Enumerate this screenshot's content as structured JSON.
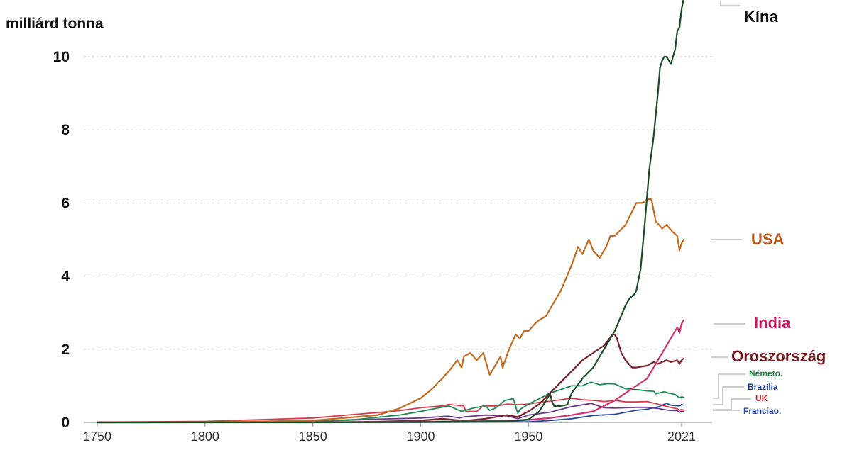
{
  "chart_data": {
    "type": "line",
    "ylabel": "milliárd tonna",
    "xlim": [
      1745,
      2023
    ],
    "ylim": [
      0,
      11
    ],
    "y_ticks": [
      "0",
      "2",
      "4",
      "6",
      "8",
      "10"
    ],
    "x_ticks": [
      "1750",
      "1800",
      "1850",
      "1900",
      "1950",
      "2021"
    ],
    "grid": true,
    "legend": "direct labels at right end of lines",
    "series": [
      {
        "name": "Kína",
        "color": "#1a4d26",
        "label_color": "#111111",
        "label_size": "large",
        "points": [
          [
            1750,
            0
          ],
          [
            1850,
            0
          ],
          [
            1900,
            0.01
          ],
          [
            1920,
            0.02
          ],
          [
            1940,
            0.03
          ],
          [
            1950,
            0.08
          ],
          [
            1955,
            0.3
          ],
          [
            1960,
            0.78
          ],
          [
            1961,
            0.55
          ],
          [
            1962,
            0.44
          ],
          [
            1965,
            0.45
          ],
          [
            1968,
            0.48
          ],
          [
            1970,
            0.8
          ],
          [
            1975,
            1.2
          ],
          [
            1980,
            1.5
          ],
          [
            1985,
            2.0
          ],
          [
            1990,
            2.5
          ],
          [
            1995,
            3.2
          ],
          [
            1997,
            3.4
          ],
          [
            1999,
            3.5
          ],
          [
            2000,
            3.6
          ],
          [
            2002,
            4.2
          ],
          [
            2004,
            5.5
          ],
          [
            2006,
            6.9
          ],
          [
            2008,
            7.8
          ],
          [
            2010,
            9.0
          ],
          [
            2011,
            9.7
          ],
          [
            2012,
            9.9
          ],
          [
            2013,
            10.0
          ],
          [
            2014,
            10.0
          ],
          [
            2015,
            9.9
          ],
          [
            2016,
            9.8
          ],
          [
            2017,
            10.0
          ],
          [
            2018,
            10.2
          ],
          [
            2019,
            10.7
          ],
          [
            2020,
            10.8
          ],
          [
            2021,
            11.3
          ],
          [
            2022,
            11.6
          ]
        ]
      },
      {
        "name": "USA",
        "color": "#c56a1e",
        "label_color": "#c0561a",
        "label_size": "large",
        "points": [
          [
            1750,
            0
          ],
          [
            1800,
            0.002
          ],
          [
            1850,
            0.05
          ],
          [
            1870,
            0.15
          ],
          [
            1880,
            0.2
          ],
          [
            1890,
            0.38
          ],
          [
            1900,
            0.66
          ],
          [
            1905,
            0.9
          ],
          [
            1910,
            1.2
          ],
          [
            1913,
            1.4
          ],
          [
            1917,
            1.7
          ],
          [
            1919,
            1.5
          ],
          [
            1920,
            1.8
          ],
          [
            1923,
            1.9
          ],
          [
            1926,
            1.7
          ],
          [
            1929,
            1.9
          ],
          [
            1932,
            1.3
          ],
          [
            1934,
            1.5
          ],
          [
            1937,
            1.8
          ],
          [
            1938,
            1.5
          ],
          [
            1941,
            2.0
          ],
          [
            1944,
            2.4
          ],
          [
            1946,
            2.3
          ],
          [
            1948,
            2.5
          ],
          [
            1950,
            2.5
          ],
          [
            1953,
            2.7
          ],
          [
            1955,
            2.8
          ],
          [
            1958,
            2.9
          ],
          [
            1960,
            3.1
          ],
          [
            1965,
            3.6
          ],
          [
            1970,
            4.3
          ],
          [
            1973,
            4.8
          ],
          [
            1975,
            4.6
          ],
          [
            1978,
            5.0
          ],
          [
            1980,
            4.7
          ],
          [
            1983,
            4.5
          ],
          [
            1986,
            4.8
          ],
          [
            1988,
            5.1
          ],
          [
            1990,
            5.1
          ],
          [
            1995,
            5.4
          ],
          [
            2000,
            6.0
          ],
          [
            2003,
            6.0
          ],
          [
            2005,
            6.1
          ],
          [
            2007,
            6.1
          ],
          [
            2009,
            5.5
          ],
          [
            2012,
            5.3
          ],
          [
            2014,
            5.4
          ],
          [
            2017,
            5.2
          ],
          [
            2019,
            5.1
          ],
          [
            2020,
            4.7
          ],
          [
            2021,
            4.9
          ],
          [
            2022,
            5.0
          ]
        ]
      },
      {
        "name": "India",
        "color": "#d42f6e",
        "label_color": "#c81b61",
        "label_size": "large",
        "points": [
          [
            1750,
            0
          ],
          [
            1850,
            0.002
          ],
          [
            1900,
            0.02
          ],
          [
            1920,
            0.03
          ],
          [
            1940,
            0.04
          ],
          [
            1950,
            0.07
          ],
          [
            1960,
            0.12
          ],
          [
            1970,
            0.2
          ],
          [
            1980,
            0.3
          ],
          [
            1990,
            0.6
          ],
          [
            2000,
            1.0
          ],
          [
            2005,
            1.2
          ],
          [
            2010,
            1.7
          ],
          [
            2015,
            2.2
          ],
          [
            2019,
            2.6
          ],
          [
            2020,
            2.45
          ],
          [
            2021,
            2.7
          ],
          [
            2022,
            2.8
          ]
        ]
      },
      {
        "name": "Oroszország",
        "color": "#7a1f2b",
        "label_color": "#7a1a20",
        "label_size": "large",
        "points": [
          [
            1750,
            0
          ],
          [
            1850,
            0.002
          ],
          [
            1880,
            0.02
          ],
          [
            1900,
            0.05
          ],
          [
            1910,
            0.1
          ],
          [
            1920,
            0.04
          ],
          [
            1930,
            0.1
          ],
          [
            1940,
            0.2
          ],
          [
            1945,
            0.15
          ],
          [
            1950,
            0.3
          ],
          [
            1955,
            0.5
          ],
          [
            1960,
            0.8
          ],
          [
            1965,
            1.1
          ],
          [
            1970,
            1.4
          ],
          [
            1975,
            1.7
          ],
          [
            1980,
            1.9
          ],
          [
            1985,
            2.1
          ],
          [
            1989,
            2.4
          ],
          [
            1990,
            2.4
          ],
          [
            1991,
            2.3
          ],
          [
            1993,
            1.9
          ],
          [
            1995,
            1.7
          ],
          [
            1998,
            1.5
          ],
          [
            2000,
            1.5
          ],
          [
            2005,
            1.55
          ],
          [
            2008,
            1.65
          ],
          [
            2010,
            1.6
          ],
          [
            2014,
            1.7
          ],
          [
            2016,
            1.65
          ],
          [
            2019,
            1.7
          ],
          [
            2020,
            1.6
          ],
          [
            2021,
            1.7
          ],
          [
            2022,
            1.75
          ]
        ]
      },
      {
        "name": "Németo.",
        "color": "#1e8a53",
        "label_color": "#1e8a40",
        "label_size": "small",
        "points": [
          [
            1750,
            0
          ],
          [
            1850,
            0.03
          ],
          [
            1870,
            0.08
          ],
          [
            1890,
            0.2
          ],
          [
            1900,
            0.3
          ],
          [
            1913,
            0.45
          ],
          [
            1919,
            0.3
          ],
          [
            1925,
            0.4
          ],
          [
            1930,
            0.45
          ],
          [
            1932,
            0.33
          ],
          [
            1935,
            0.4
          ],
          [
            1939,
            0.6
          ],
          [
            1943,
            0.65
          ],
          [
            1945,
            0.25
          ],
          [
            1946,
            0.35
          ],
          [
            1950,
            0.5
          ],
          [
            1955,
            0.65
          ],
          [
            1960,
            0.8
          ],
          [
            1965,
            0.9
          ],
          [
            1970,
            1.0
          ],
          [
            1975,
            1.0
          ],
          [
            1979,
            1.1
          ],
          [
            1983,
            1.03
          ],
          [
            1987,
            1.06
          ],
          [
            1990,
            1.05
          ],
          [
            1995,
            0.92
          ],
          [
            2000,
            0.9
          ],
          [
            2005,
            0.86
          ],
          [
            2008,
            0.85
          ],
          [
            2009,
            0.78
          ],
          [
            2013,
            0.84
          ],
          [
            2015,
            0.8
          ],
          [
            2018,
            0.76
          ],
          [
            2020,
            0.67
          ],
          [
            2021,
            0.7
          ],
          [
            2022,
            0.68
          ]
        ]
      },
      {
        "name": "Brazília",
        "color": "#2b4ba0",
        "label_color": "#1c3a9a",
        "label_size": "small",
        "points": [
          [
            1750,
            0
          ],
          [
            1900,
            0.002
          ],
          [
            1930,
            0.01
          ],
          [
            1950,
            0.02
          ],
          [
            1960,
            0.05
          ],
          [
            1970,
            0.1
          ],
          [
            1980,
            0.19
          ],
          [
            1990,
            0.22
          ],
          [
            2000,
            0.33
          ],
          [
            2005,
            0.36
          ],
          [
            2010,
            0.42
          ],
          [
            2014,
            0.52
          ],
          [
            2016,
            0.47
          ],
          [
            2020,
            0.45
          ],
          [
            2021,
            0.49
          ],
          [
            2022,
            0.47
          ]
        ]
      },
      {
        "name": "UK",
        "color": "#d93a4a",
        "label_color": "#d8202b",
        "label_size": "small",
        "points": [
          [
            1750,
            0.01
          ],
          [
            1800,
            0.03
          ],
          [
            1850,
            0.12
          ],
          [
            1870,
            0.22
          ],
          [
            1880,
            0.27
          ],
          [
            1890,
            0.32
          ],
          [
            1900,
            0.4
          ],
          [
            1910,
            0.45
          ],
          [
            1913,
            0.49
          ],
          [
            1920,
            0.45
          ],
          [
            1921,
            0.3
          ],
          [
            1926,
            0.3
          ],
          [
            1929,
            0.45
          ],
          [
            1935,
            0.45
          ],
          [
            1940,
            0.5
          ],
          [
            1945,
            0.48
          ],
          [
            1950,
            0.5
          ],
          [
            1955,
            0.55
          ],
          [
            1960,
            0.58
          ],
          [
            1965,
            0.62
          ],
          [
            1970,
            0.66
          ],
          [
            1975,
            0.62
          ],
          [
            1980,
            0.6
          ],
          [
            1985,
            0.57
          ],
          [
            1990,
            0.6
          ],
          [
            1995,
            0.56
          ],
          [
            2000,
            0.56
          ],
          [
            2005,
            0.57
          ],
          [
            2010,
            0.5
          ],
          [
            2015,
            0.42
          ],
          [
            2019,
            0.37
          ],
          [
            2020,
            0.33
          ],
          [
            2021,
            0.35
          ],
          [
            2022,
            0.34
          ]
        ]
      },
      {
        "name": "Franciao.",
        "color": "#6a3c88",
        "label_color": "#1c3a9a",
        "label_size": "small",
        "points": [
          [
            1750,
            0
          ],
          [
            1800,
            0.002
          ],
          [
            1850,
            0.03
          ],
          [
            1880,
            0.09
          ],
          [
            1900,
            0.12
          ],
          [
            1913,
            0.17
          ],
          [
            1918,
            0.12
          ],
          [
            1920,
            0.15
          ],
          [
            1930,
            0.2
          ],
          [
            1940,
            0.18
          ],
          [
            1945,
            0.1
          ],
          [
            1950,
            0.2
          ],
          [
            1960,
            0.28
          ],
          [
            1970,
            0.43
          ],
          [
            1979,
            0.52
          ],
          [
            1985,
            0.4
          ],
          [
            1990,
            0.39
          ],
          [
            2000,
            0.41
          ],
          [
            2005,
            0.41
          ],
          [
            2010,
            0.38
          ],
          [
            2015,
            0.33
          ],
          [
            2019,
            0.32
          ],
          [
            2020,
            0.28
          ],
          [
            2021,
            0.3
          ],
          [
            2022,
            0.3
          ]
        ]
      }
    ]
  }
}
